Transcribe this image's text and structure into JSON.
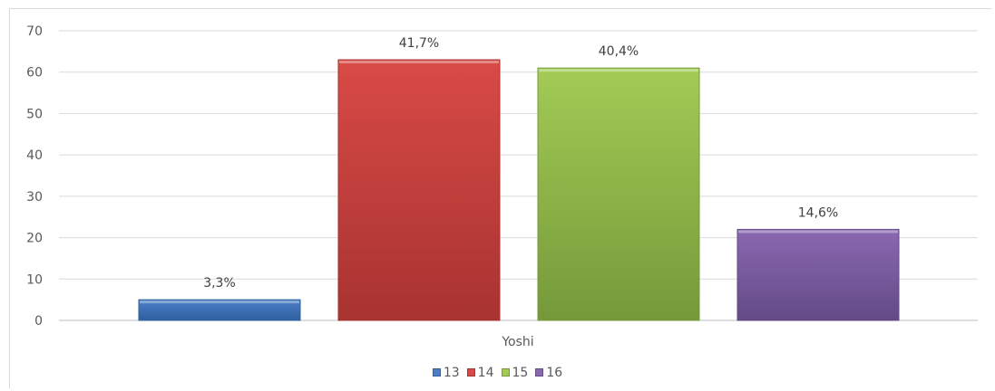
{
  "chart_data": {
    "type": "bar",
    "title": "",
    "xlabel": "Yoshi",
    "ylabel": "",
    "ylim": [
      0,
      70
    ],
    "yticks": [
      0,
      10,
      20,
      30,
      40,
      50,
      60,
      70
    ],
    "grid": true,
    "legend_position": "bottom",
    "categories": [
      "Yoshi"
    ],
    "series": [
      {
        "name": "13",
        "values": [
          5
        ],
        "label": "3,3%",
        "color": "#4a7fc8",
        "dark": "#2f5f9e"
      },
      {
        "name": "14",
        "values": [
          63
        ],
        "label": "41,7%",
        "color": "#d84a46",
        "dark": "#a83331"
      },
      {
        "name": "15",
        "values": [
          61
        ],
        "label": "40,4%",
        "color": "#a3cb55",
        "dark": "#75993a"
      },
      {
        "name": "16",
        "values": [
          22
        ],
        "label": "14,6%",
        "color": "#8a68b1",
        "dark": "#634a86"
      }
    ]
  }
}
